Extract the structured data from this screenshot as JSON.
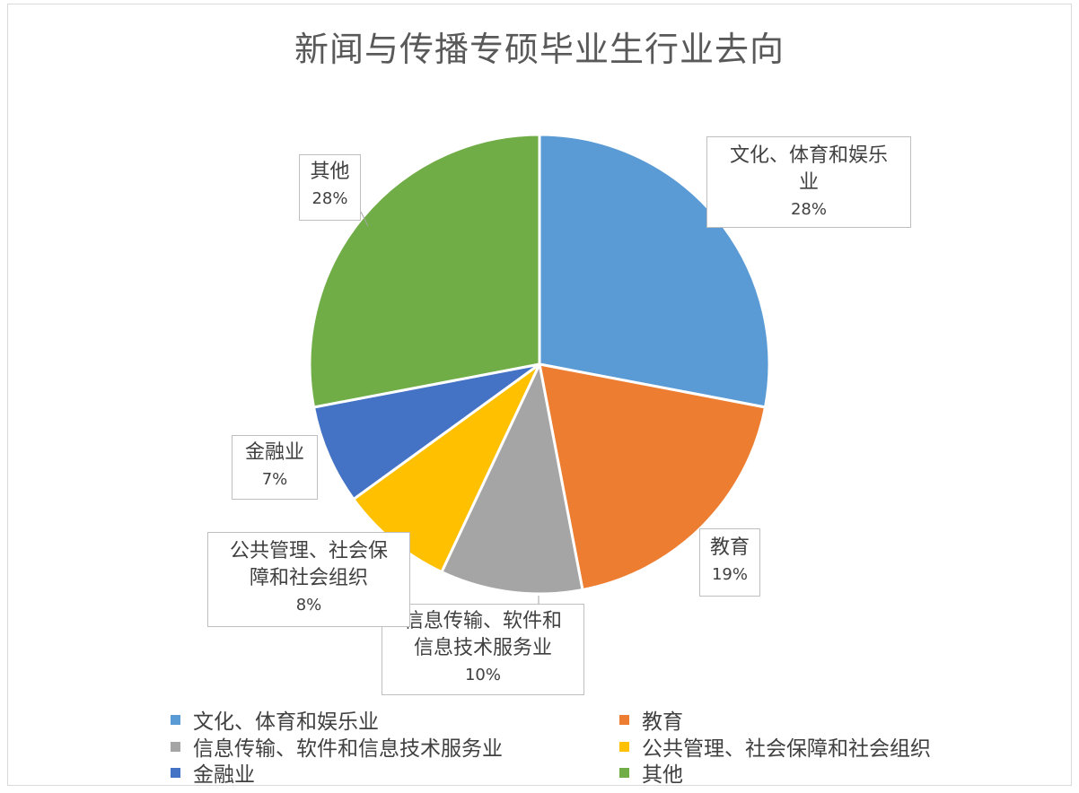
{
  "chart_data": {
    "type": "pie",
    "title": "新闻与传播专硕毕业生行业去向",
    "series": [
      {
        "categories": [
          "文化、体育和娱乐业",
          "教育",
          "信息传输、软件和信息技术服务业",
          "公共管理、社会保障和社会组织",
          "金融业",
          "其他"
        ],
        "values": [
          28,
          19,
          10,
          8,
          7,
          28
        ],
        "value_labels": [
          "28%",
          "19%",
          "10%",
          "8%",
          "7%",
          "28%"
        ],
        "colors": [
          "#5b9bd5",
          "#ed7d31",
          "#a5a5a5",
          "#ffc000",
          "#4472c4",
          "#70ad47"
        ]
      }
    ],
    "data_labels": [
      {
        "lines": [
          "文化、体育和娱乐",
          "业"
        ],
        "pct": "28%"
      },
      {
        "lines": [
          "教育"
        ],
        "pct": "19%"
      },
      {
        "lines": [
          "信息传输、软件和",
          "信息技术服务业"
        ],
        "pct": "10%"
      },
      {
        "lines": [
          "公共管理、社会保",
          "障和社会组织"
        ],
        "pct": "8%"
      },
      {
        "lines": [
          "金融业"
        ],
        "pct": "7%"
      },
      {
        "lines": [
          "其他"
        ],
        "pct": "28%"
      }
    ],
    "legend": {
      "position": "bottom",
      "items": [
        {
          "label": "文化、体育和娱乐业",
          "color": "#5b9bd5"
        },
        {
          "label": "教育",
          "color": "#ed7d31"
        },
        {
          "label": "信息传输、软件和信息技术服务业",
          "color": "#a5a5a5"
        },
        {
          "label": "公共管理、社会保障和社会组织",
          "color": "#ffc000"
        },
        {
          "label": "金融业",
          "color": "#4472c4"
        },
        {
          "label": "其他",
          "color": "#70ad47"
        }
      ]
    }
  }
}
